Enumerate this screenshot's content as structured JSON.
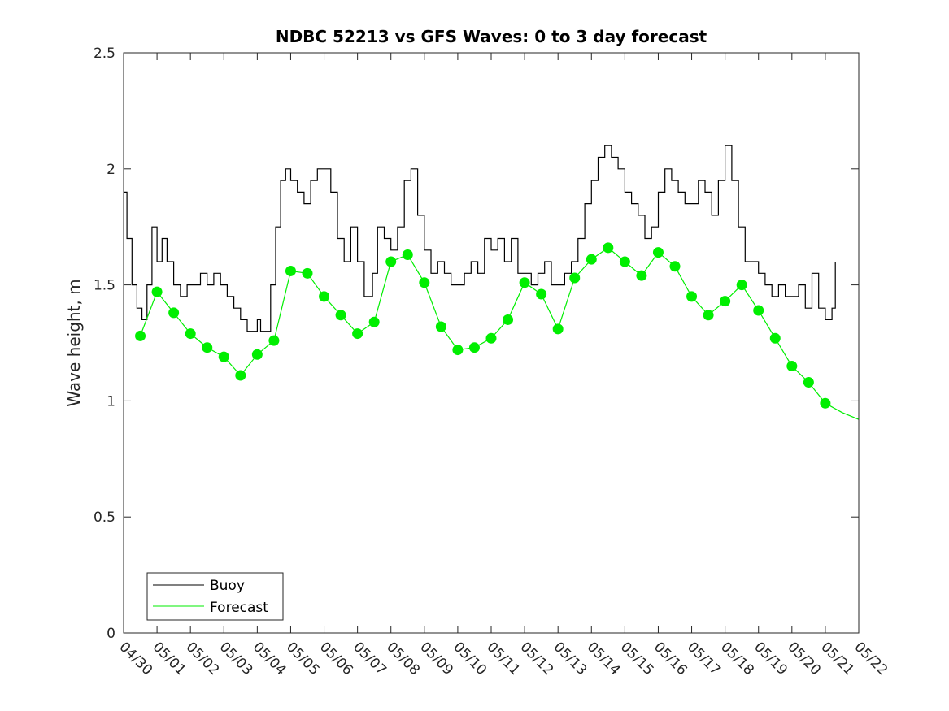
{
  "chart_data": {
    "type": "line",
    "title": "NDBC 52213 vs GFS Waves: 0 to 3 day forecast",
    "xlabel": "",
    "ylabel": "Wave height, m",
    "xlim": [
      0,
      22
    ],
    "ylim": [
      0,
      2.5
    ],
    "x_tick_labels": [
      "04/30",
      "05/01",
      "05/02",
      "05/03",
      "05/04",
      "05/05",
      "05/06",
      "05/07",
      "05/08",
      "05/09",
      "05/10",
      "05/11",
      "05/12",
      "05/13",
      "05/14",
      "05/15",
      "05/16",
      "05/17",
      "05/18",
      "05/19",
      "05/20",
      "05/21",
      "05/22"
    ],
    "y_ticks": [
      0,
      0.5,
      1,
      1.5,
      2,
      2.5
    ],
    "y_tick_labels": [
      "0",
      "0.5",
      "1",
      "1.5",
      "2",
      "2.5"
    ],
    "grid": false,
    "legend": {
      "position": "bottom-left",
      "entries": [
        "Buoy",
        "Forecast"
      ]
    },
    "colors": {
      "buoy": "#000000",
      "forecast": "#00ee00",
      "axis": "#262626"
    },
    "series": [
      {
        "name": "Buoy",
        "x": [
          0.0,
          0.1,
          0.25,
          0.4,
          0.55,
          0.7,
          0.85,
          1.0,
          1.15,
          1.3,
          1.5,
          1.7,
          1.9,
          2.1,
          2.3,
          2.5,
          2.7,
          2.9,
          3.1,
          3.3,
          3.5,
          3.7,
          3.85,
          4.0,
          4.1,
          4.25,
          4.4,
          4.55,
          4.7,
          4.85,
          5.0,
          5.2,
          5.4,
          5.6,
          5.8,
          6.0,
          6.2,
          6.4,
          6.6,
          6.8,
          7.0,
          7.2,
          7.45,
          7.6,
          7.8,
          8.0,
          8.2,
          8.4,
          8.6,
          8.8,
          9.0,
          9.2,
          9.4,
          9.6,
          9.8,
          10.0,
          10.2,
          10.4,
          10.6,
          10.8,
          11.0,
          11.2,
          11.4,
          11.6,
          11.8,
          12.0,
          12.2,
          12.4,
          12.6,
          12.8,
          13.0,
          13.2,
          13.4,
          13.6,
          13.8,
          14.0,
          14.2,
          14.4,
          14.6,
          14.8,
          15.0,
          15.2,
          15.4,
          15.6,
          15.8,
          16.0,
          16.2,
          16.4,
          16.6,
          16.8,
          17.0,
          17.2,
          17.4,
          17.6,
          17.8,
          18.0,
          18.2,
          18.4,
          18.6,
          18.8,
          19.0,
          19.2,
          19.4,
          19.6,
          19.8,
          20.0,
          20.2,
          20.4,
          20.6,
          20.8,
          21.0,
          21.2,
          21.3
        ],
        "values": [
          1.9,
          1.7,
          1.5,
          1.4,
          1.35,
          1.5,
          1.75,
          1.6,
          1.7,
          1.6,
          1.5,
          1.45,
          1.5,
          1.5,
          1.55,
          1.5,
          1.55,
          1.5,
          1.45,
          1.4,
          1.35,
          1.3,
          1.3,
          1.35,
          1.3,
          1.3,
          1.5,
          1.75,
          1.95,
          2.0,
          1.95,
          1.9,
          1.85,
          1.95,
          2.0,
          2.0,
          1.9,
          1.7,
          1.6,
          1.75,
          1.6,
          1.45,
          1.55,
          1.75,
          1.7,
          1.65,
          1.75,
          1.95,
          2.0,
          1.8,
          1.65,
          1.55,
          1.6,
          1.55,
          1.5,
          1.5,
          1.55,
          1.6,
          1.55,
          1.7,
          1.65,
          1.7,
          1.6,
          1.7,
          1.55,
          1.55,
          1.5,
          1.55,
          1.6,
          1.5,
          1.5,
          1.55,
          1.6,
          1.7,
          1.85,
          1.95,
          2.05,
          2.1,
          2.05,
          2.0,
          1.9,
          1.85,
          1.8,
          1.7,
          1.75,
          1.9,
          2.0,
          1.95,
          1.9,
          1.85,
          1.85,
          1.95,
          1.9,
          1.8,
          1.95,
          2.1,
          1.95,
          1.75,
          1.6,
          1.6,
          1.55,
          1.5,
          1.45,
          1.5,
          1.45,
          1.45,
          1.5,
          1.4,
          1.55,
          1.4,
          1.35,
          1.4,
          1.6
        ]
      },
      {
        "name": "Forecast",
        "x": [
          0.5,
          1.0,
          1.5,
          2.0,
          2.5,
          3.0,
          3.5,
          4.0,
          4.5,
          5.0,
          5.5,
          6.0,
          6.5,
          7.0,
          7.5,
          8.0,
          8.5,
          9.0,
          9.5,
          10.0,
          10.5,
          11.0,
          11.5,
          12.0,
          12.5,
          13.0,
          13.5,
          14.0,
          14.5,
          15.0,
          15.5,
          16.0,
          16.5,
          17.0,
          17.5,
          18.0,
          18.5,
          19.0,
          19.5,
          20.0,
          20.5,
          21.0,
          21.5,
          22.0
        ],
        "values": [
          1.28,
          1.47,
          1.38,
          1.29,
          1.23,
          1.19,
          1.11,
          1.2,
          1.26,
          1.56,
          1.55,
          1.45,
          1.37,
          1.29,
          1.34,
          1.6,
          1.63,
          1.51,
          1.32,
          1.22,
          1.23,
          1.27,
          1.35,
          1.51,
          1.46,
          1.31,
          1.53,
          1.61,
          1.66,
          1.6,
          1.54,
          1.64,
          1.58,
          1.45,
          1.37,
          1.43,
          1.5,
          1.39,
          1.27,
          1.15,
          1.08,
          0.99,
          0.95,
          0.92
        ]
      }
    ]
  }
}
